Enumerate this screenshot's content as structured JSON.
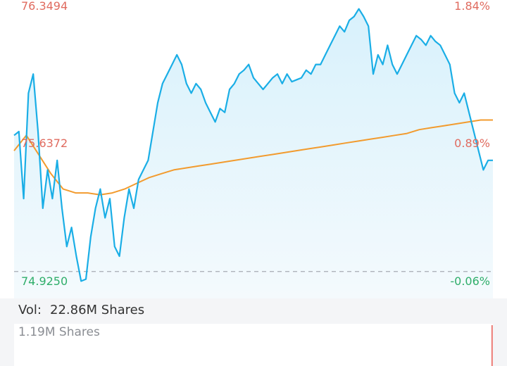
{
  "chart_data": {
    "type": "line",
    "price_axis": {
      "high": "76.3494",
      "mid": "75.6372",
      "low": "74.9250"
    },
    "pct_axis": {
      "high": "1.84%",
      "mid": "0.89%",
      "low": "-0.06%"
    },
    "ylim": [
      74.925,
      76.3494
    ],
    "reference_price": 74.97,
    "x_range": [
      0,
      100
    ],
    "series": [
      {
        "values": [
          75.68,
          75.7,
          75.35,
          75.9,
          76.0,
          75.7,
          75.3,
          75.5,
          75.35,
          75.55,
          75.3,
          75.1,
          75.2,
          75.05,
          74.92,
          74.93,
          75.15,
          75.3,
          75.4,
          75.25,
          75.35,
          75.1,
          75.05,
          75.25,
          75.4,
          75.3,
          75.45,
          75.5,
          75.55,
          75.7,
          75.85,
          75.95,
          76.0,
          76.05,
          76.1,
          76.05,
          75.95,
          75.9,
          75.95,
          75.92,
          75.85,
          75.8,
          75.75,
          75.82,
          75.8,
          75.92,
          75.95,
          76.0,
          76.02,
          76.05,
          75.98,
          75.95,
          75.92,
          75.95,
          75.98,
          76.0,
          75.95,
          76.0,
          75.96,
          75.97,
          75.98,
          76.02,
          76.0,
          76.05,
          76.05,
          76.1,
          76.15,
          76.2,
          76.25,
          76.22,
          76.28,
          76.3,
          76.34,
          76.3,
          76.25,
          76.0,
          76.1,
          76.05,
          76.15,
          76.05,
          76.0,
          76.05,
          76.1,
          76.15,
          76.2,
          76.18,
          76.15,
          76.2,
          76.17,
          76.15,
          76.1,
          76.05,
          75.9,
          75.85,
          75.9,
          75.8,
          75.7,
          75.6,
          75.5,
          75.55,
          75.55
        ]
      },
      {
        "values": [
          75.6,
          75.68,
          75.58,
          75.48,
          75.4,
          75.38,
          75.38,
          75.37,
          75.38,
          75.4,
          75.43,
          75.46,
          75.48,
          75.5,
          75.51,
          75.52,
          75.53,
          75.54,
          75.55,
          75.56,
          75.57,
          75.58,
          75.59,
          75.6,
          75.61,
          75.62,
          75.63,
          75.64,
          75.65,
          75.66,
          75.67,
          75.68,
          75.69,
          75.71,
          75.72,
          75.73,
          75.74,
          75.75,
          75.76,
          75.76
        ]
      }
    ]
  },
  "volume": {
    "label": "Vol:",
    "total": "22.86M Shares",
    "axis_max": "1.19M Shares"
  },
  "colors": {
    "price_line": "#1aaee6",
    "price_fill_top": "#d8f1fc",
    "price_fill_bottom": "#f4fafd",
    "avg_line": "#f29b2e",
    "up_text": "#e06b5f",
    "down_text": "#2fae6a",
    "reference_line": "#a6abb3",
    "volume_bar": "#e8625a"
  }
}
